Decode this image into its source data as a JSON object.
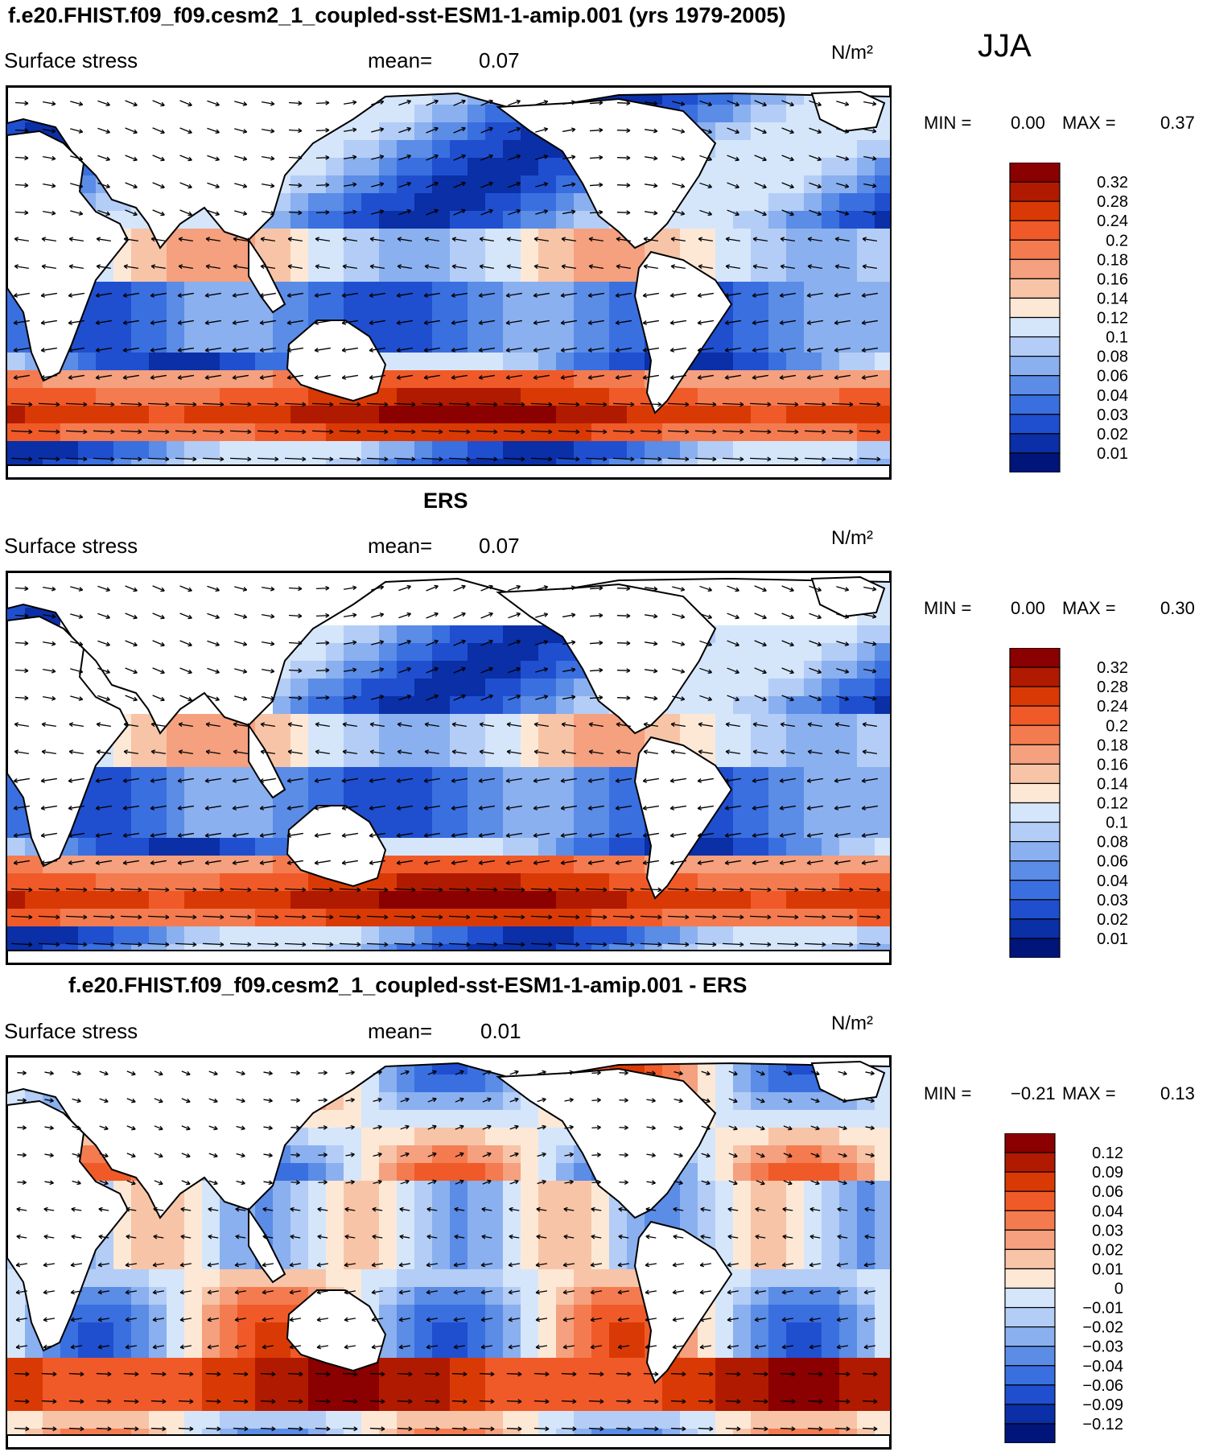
{
  "season": "JJA",
  "units": "N/m²",
  "panels": [
    {
      "title": "f.e20.FHIST.f09_f09.cesm2_1_coupled-sst-ESM1-1-amip.001 (yrs 1979-2005)",
      "variable": "Surface stress",
      "mean_label": "mean=",
      "mean_value": "0.07",
      "min_label": "MIN =",
      "min_value": "0.00",
      "max_label": "MAX =",
      "max_value": "0.37",
      "kind": "model"
    },
    {
      "title": "ERS",
      "variable": "Surface stress",
      "mean_label": "mean=",
      "mean_value": "0.07",
      "min_label": "MIN =",
      "min_value": "0.00",
      "max_label": "MAX =",
      "max_value": "0.30",
      "kind": "obs"
    },
    {
      "title": "f.e20.FHIST.f09_f09.cesm2_1_coupled-sst-ESM1-1-amip.001 - ERS",
      "variable": "Surface stress",
      "mean_label": "mean=",
      "mean_value": "0.01",
      "min_label": "MIN =",
      "min_value": "−0.21",
      "max_label": "MAX =",
      "max_value": "0.13",
      "kind": "diff"
    }
  ],
  "chart_data": [
    {
      "type": "heatmap",
      "colorbar_levels": [
        "0.32",
        "0.28",
        "0.24",
        "0.2",
        "0.18",
        "0.16",
        "0.14",
        "0.12",
        "0.1",
        "0.08",
        "0.06",
        "0.04",
        "0.03",
        "0.02",
        "0.01"
      ],
      "colorbar_colors": [
        "#8b0000",
        "#b01a00",
        "#d93a05",
        "#f05a28",
        "#f47b4f",
        "#f5a07e",
        "#f8c4a7",
        "#fde8d6",
        "#d5e6fb",
        "#b3cdf6",
        "#8ab0ef",
        "#5b8ce6",
        "#3a6fe0",
        "#1f4fcf",
        "#0a2fa6",
        "#00157a"
      ]
    },
    {
      "type": "heatmap",
      "colorbar_levels": [
        "0.32",
        "0.28",
        "0.24",
        "0.2",
        "0.18",
        "0.16",
        "0.14",
        "0.12",
        "0.1",
        "0.08",
        "0.06",
        "0.04",
        "0.03",
        "0.02",
        "0.01"
      ],
      "colorbar_colors": [
        "#8b0000",
        "#b01a00",
        "#d93a05",
        "#f05a28",
        "#f47b4f",
        "#f5a07e",
        "#f8c4a7",
        "#fde8d6",
        "#d5e6fb",
        "#b3cdf6",
        "#8ab0ef",
        "#5b8ce6",
        "#3a6fe0",
        "#1f4fcf",
        "#0a2fa6",
        "#00157a"
      ]
    },
    {
      "type": "heatmap",
      "colorbar_levels": [
        "0.12",
        "0.09",
        "0.06",
        "0.04",
        "0.03",
        "0.02",
        "0.01",
        "0",
        "−0.01",
        "−0.02",
        "−0.03",
        "−0.04",
        "−0.06",
        "−0.09",
        "−0.12"
      ],
      "colorbar_colors": [
        "#8b0000",
        "#b01a00",
        "#d93a05",
        "#f05a28",
        "#f47b4f",
        "#f5a07e",
        "#f8c4a7",
        "#fde8d6",
        "#d5e6fb",
        "#b3cdf6",
        "#8ab0ef",
        "#5b8ce6",
        "#3a6fe0",
        "#1f4fcf",
        "#0a2fa6",
        "#00157a"
      ]
    }
  ]
}
